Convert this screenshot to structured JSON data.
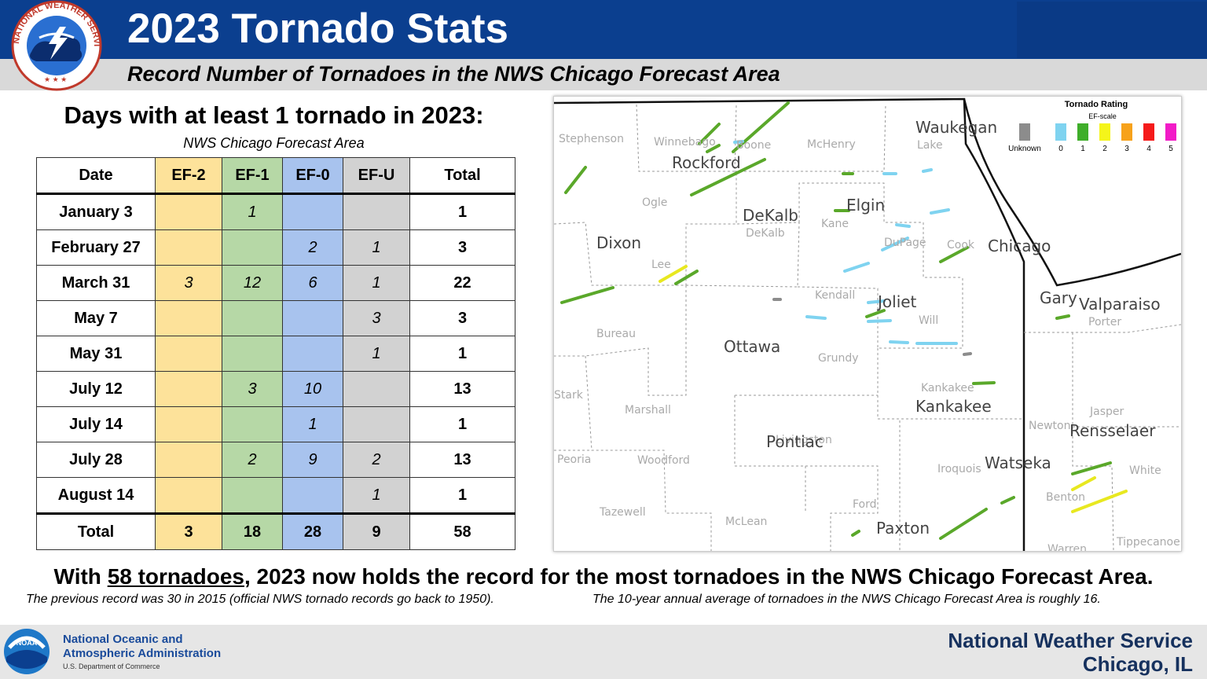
{
  "header": {
    "title": "2023 Tornado Stats",
    "subtitle": "Record Number of Tornadoes in the NWS Chicago Forecast Area",
    "logo_text": "NATIONAL WEATHER SERVICE"
  },
  "table": {
    "heading": "Days with at least 1 tornado in 2023:",
    "subheading": "NWS Chicago Forecast Area",
    "columns": [
      "Date",
      "EF-2",
      "EF-1",
      "EF-0",
      "EF-U",
      "Total"
    ],
    "rows": [
      {
        "date": "January 3",
        "ef2": "",
        "ef1": "1",
        "ef0": "",
        "efu": "",
        "total": "1"
      },
      {
        "date": "February 27",
        "ef2": "",
        "ef1": "",
        "ef0": "2",
        "efu": "1",
        "total": "3"
      },
      {
        "date": "March 31",
        "ef2": "3",
        "ef1": "12",
        "ef0": "6",
        "efu": "1",
        "total": "22"
      },
      {
        "date": "May 7",
        "ef2": "",
        "ef1": "",
        "ef0": "",
        "efu": "3",
        "total": "3"
      },
      {
        "date": "May 31",
        "ef2": "",
        "ef1": "",
        "ef0": "",
        "efu": "1",
        "total": "1"
      },
      {
        "date": "July 12",
        "ef2": "",
        "ef1": "3",
        "ef0": "10",
        "efu": "",
        "total": "13"
      },
      {
        "date": "July 14",
        "ef2": "",
        "ef1": "",
        "ef0": "1",
        "efu": "",
        "total": "1"
      },
      {
        "date": "July 28",
        "ef2": "",
        "ef1": "2",
        "ef0": "9",
        "efu": "2",
        "total": "13"
      },
      {
        "date": "August 14",
        "ef2": "",
        "ef1": "",
        "ef0": "",
        "efu": "1",
        "total": "1"
      }
    ],
    "totals": {
      "label": "Total",
      "ef2": "3",
      "ef1": "18",
      "ef0": "28",
      "efu": "9",
      "total": "58"
    }
  },
  "map": {
    "legend": {
      "title": "Tornado Rating",
      "subtitle": "EF-scale",
      "items": [
        {
          "label": "Unknown",
          "color": "#8c8c8c"
        },
        {
          "label": "0",
          "color": "#7fd3f0"
        },
        {
          "label": "1",
          "color": "#3fae2a"
        },
        {
          "label": "2",
          "color": "#f5f51a"
        },
        {
          "label": "3",
          "color": "#f7a21b"
        },
        {
          "label": "4",
          "color": "#f51a1a"
        },
        {
          "label": "5",
          "color": "#f21bc7"
        }
      ]
    },
    "cities": [
      "Waukegan",
      "Rockford",
      "Elgin",
      "DeKalb",
      "Chicago",
      "Dixon",
      "Joliet",
      "Gary",
      "Valparaiso",
      "Ottawa",
      "Kankakee",
      "Pontiac",
      "Rensselaer",
      "Watseka",
      "Paxton"
    ],
    "counties": [
      "Stephenson",
      "Winnebago",
      "Boone",
      "McHenry",
      "Lake",
      "Ogle",
      "DeKalb",
      "Kane",
      "DuPage",
      "Cook",
      "Lee",
      "Kendall",
      "Will",
      "Bureau",
      "Grundy",
      "Porter",
      "Stark",
      "Marshall",
      "Kankakee",
      "Jasper",
      "Newton",
      "Peoria",
      "Woodford",
      "Livingston",
      "Iroquois",
      "White",
      "Benton",
      "Ford",
      "Tazewell",
      "McLean",
      "Warren",
      "Tippecanoe"
    ]
  },
  "footer": {
    "headline_pre": "With ",
    "headline_link": "58 tornadoes",
    "headline_post": ", 2023 now holds the record for the most tornadoes in the NWS Chicago Forecast Area.",
    "note_left": "The previous record was 30 in 2015 (official NWS tornado records go back to 1950).",
    "note_right": "The 10-year annual average of tornadoes in the NWS Chicago Forecast Area is roughly 16.",
    "noaa_line1": "National Oceanic and",
    "noaa_line2": "Atmospheric Administration",
    "noaa_line3": "U.S. Department of Commerce",
    "noaa_badge": "NOAA",
    "nws_line1": "National Weather Service",
    "nws_line2": "Chicago, IL"
  }
}
